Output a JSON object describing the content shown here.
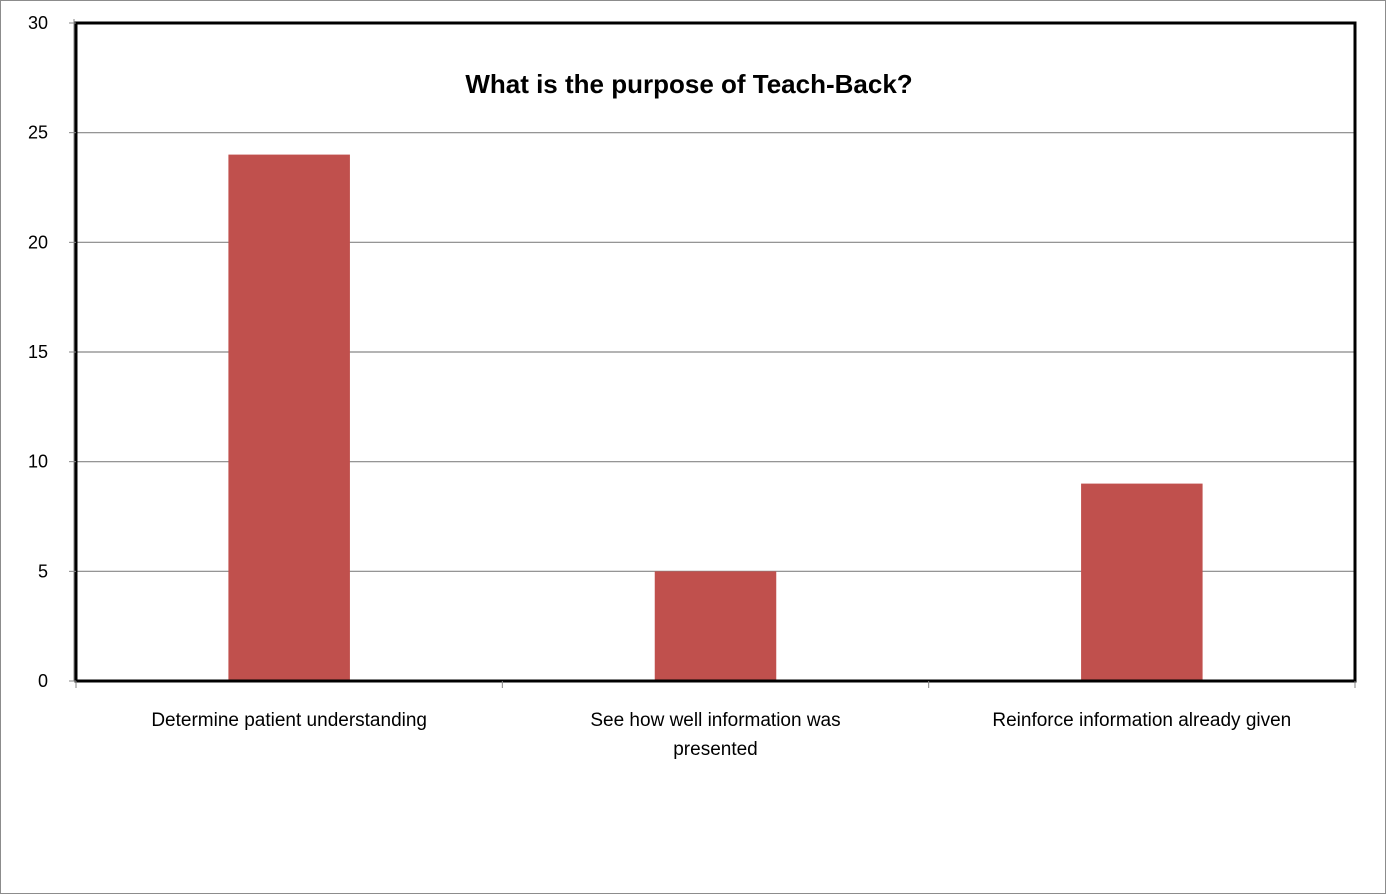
{
  "chart_data": {
    "type": "bar",
    "title": "What is the purpose of Teach-Back?",
    "categories": [
      [
        "Determine patient understanding"
      ],
      [
        "See how well information was",
        "presented"
      ],
      [
        "Reinforce information already given"
      ]
    ],
    "values": [
      24,
      5,
      9
    ],
    "ylim": [
      0,
      30
    ],
    "yticks": [
      0,
      5,
      10,
      15,
      20,
      25,
      30
    ],
    "xlabel": "",
    "ylabel": "",
    "grid": true,
    "legend": "none",
    "colors": {
      "bar": "#C0504D",
      "grid": "#868686",
      "plot_border": "#000000",
      "frame_border": "#8C8C8C"
    }
  }
}
